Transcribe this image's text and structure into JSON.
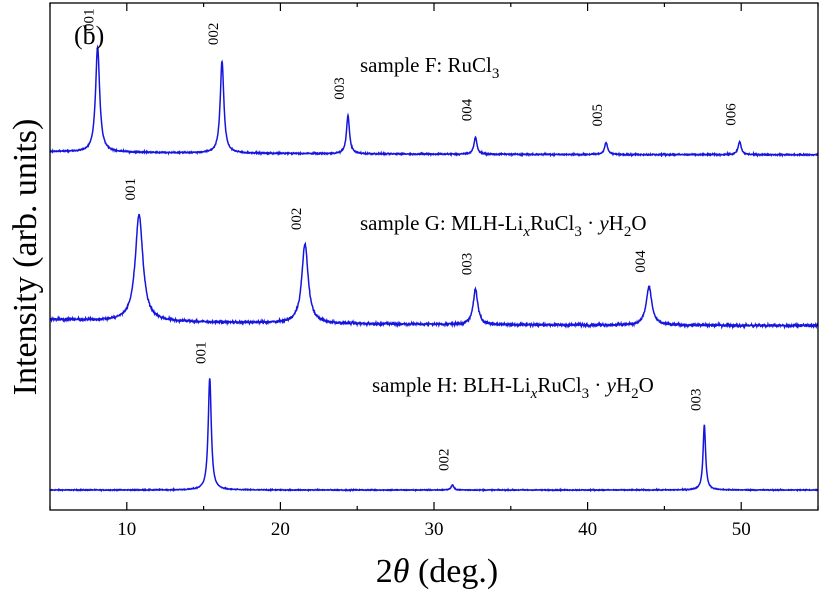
{
  "chart_data": {
    "type": "line",
    "panel_label": "(b)",
    "xlabel": "2θ (deg.)",
    "xlabel_prefix": "2",
    "xlabel_symbol": "θ",
    "xlabel_suffix": " (deg.)",
    "ylabel": "Intensity (arb. units)",
    "xlim": [
      5,
      55
    ],
    "xticks": [
      10,
      20,
      30,
      40,
      50
    ],
    "xtick_labels": [
      "10",
      "20",
      "30",
      "40",
      "50"
    ],
    "color": "#1515dd",
    "series": [
      {
        "label_parts": [
          "sample F: RuCl",
          "3"
        ],
        "label_style": "F",
        "offset": 2.0,
        "baseline": 0.0,
        "noise": 0.004,
        "peaks": [
          {
            "x": 15.4,
            "height": 1.0,
            "width": 0.12,
            "label": "001"
          },
          {
            "x": 31.2,
            "height": 0.045,
            "width": 0.1,
            "label": "002"
          },
          {
            "x": 47.6,
            "height": 0.58,
            "width": 0.1,
            "label": "003"
          }
        ]
      },
      {
        "label_parts": [
          "sample G: MLH-Li",
          "x",
          "RuCl",
          "3",
          " · ",
          "y",
          "H",
          "2",
          "O"
        ],
        "label_style": "LH",
        "offset": 1.0,
        "baseline": 0.06,
        "noise": 0.012,
        "peaks": [
          {
            "x": 10.8,
            "height": 0.97,
            "width": 0.3,
            "label": "001"
          },
          {
            "x": 21.6,
            "height": 0.72,
            "width": 0.25,
            "label": "002"
          },
          {
            "x": 32.7,
            "height": 0.32,
            "width": 0.18,
            "label": "003"
          },
          {
            "x": 44.0,
            "height": 0.35,
            "width": 0.22,
            "label": "004"
          }
        ]
      },
      {
        "label_parts": [
          "sample H: BLH-Li",
          "x",
          "RuCl",
          "3",
          " · ",
          "y",
          "H",
          "2",
          "O"
        ],
        "label_style": "LH",
        "offset": 0.0,
        "baseline": 0.035,
        "noise": 0.007,
        "peaks": [
          {
            "x": 8.1,
            "height": 1.05,
            "width": 0.16,
            "label": "001"
          },
          {
            "x": 16.2,
            "height": 0.92,
            "width": 0.14,
            "label": "002"
          },
          {
            "x": 24.4,
            "height": 0.38,
            "width": 0.12,
            "label": "003"
          },
          {
            "x": 32.7,
            "height": 0.17,
            "width": 0.12,
            "label": "004"
          },
          {
            "x": 41.2,
            "height": 0.12,
            "width": 0.12,
            "label": "005"
          },
          {
            "x": 49.9,
            "height": 0.13,
            "width": 0.12,
            "label": "006"
          }
        ]
      }
    ]
  }
}
